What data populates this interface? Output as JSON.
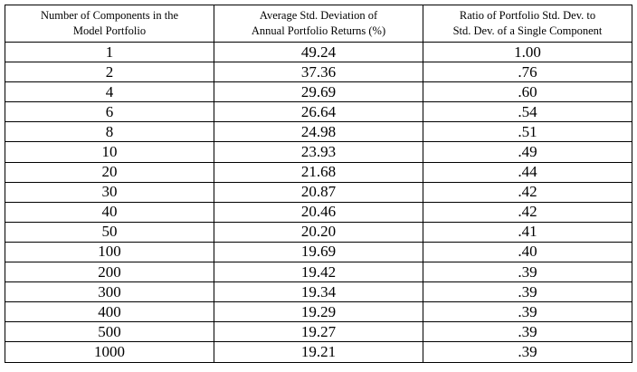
{
  "table": {
    "header": [
      [
        "Number of Components  in the",
        "Model Portfolio"
      ],
      [
        "Average Std. Deviation of",
        "Annual Portfolio Returns  (%)"
      ],
      [
        "Ratio of Portfolio Std. Dev. to",
        "Std. Dev. of a Single Component"
      ]
    ],
    "rows": [
      [
        "1",
        "49.24",
        "1.00"
      ],
      [
        "2",
        "37.36",
        ".76"
      ],
      [
        "4",
        "29.69",
        ".60"
      ],
      [
        "6",
        "26.64",
        ".54"
      ],
      [
        "8",
        "24.98",
        ".51"
      ],
      [
        "10",
        "23.93",
        ".49"
      ],
      [
        "20",
        "21.68",
        ".44"
      ],
      [
        "30",
        "20.87",
        ".42"
      ],
      [
        "40",
        "20.46",
        ".42"
      ],
      [
        "50",
        "20.20",
        ".41"
      ],
      [
        "100",
        "19.69",
        ".40"
      ],
      [
        "200",
        "19.42",
        ".39"
      ],
      [
        "300",
        "19.34",
        ".39"
      ],
      [
        "400",
        "19.29",
        ".39"
      ],
      [
        "500",
        "19.27",
        ".39"
      ],
      [
        "1000",
        "19.21",
        ".39"
      ]
    ]
  }
}
